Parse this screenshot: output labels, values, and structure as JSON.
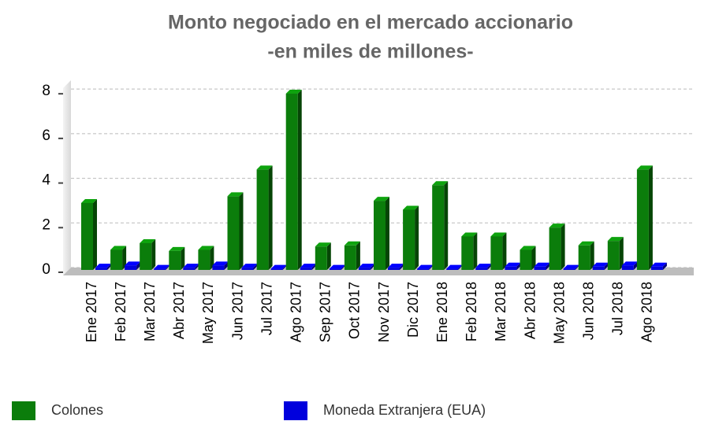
{
  "chart_data": {
    "type": "bar3d",
    "title": "Monto negociado en el mercado accionario",
    "subtitle": "-en miles de millones-",
    "categories": [
      "Ene 2017",
      "Feb 2017",
      "Mar 2017",
      "Abr 2017",
      "May 2017",
      "Jun 2017",
      "Jul 2017",
      "Ago 2017",
      "Sep 2017",
      "Oct 2017",
      "Nov 2017",
      "Dic 2017",
      "Ene 2018",
      "Feb 2018",
      "Mar 2018",
      "Abr 2018",
      "May 2018",
      "Jun 2018",
      "Jul 2018",
      "Ago 2018"
    ],
    "series": [
      {
        "name": "Colones",
        "color": "#0b7d0b",
        "values": [
          3.0,
          0.9,
          1.2,
          0.85,
          0.9,
          3.3,
          4.5,
          7.9,
          1.05,
          1.1,
          3.1,
          2.7,
          3.8,
          1.5,
          1.5,
          0.9,
          1.9,
          1.1,
          1.3,
          4.5
        ]
      },
      {
        "name": "Moneda Extranjera (EUA)",
        "color": "#0000dd",
        "values": [
          0.1,
          0.2,
          0.05,
          0.1,
          0.2,
          0.1,
          0.05,
          0.1,
          0.05,
          0.1,
          0.1,
          0.05,
          0.05,
          0.1,
          0.15,
          0.15,
          0.05,
          0.15,
          0.2,
          0.15
        ]
      }
    ],
    "ylim": [
      0,
      8.5
    ],
    "yticks": [
      0,
      2,
      4,
      6,
      8
    ],
    "grid": true
  }
}
